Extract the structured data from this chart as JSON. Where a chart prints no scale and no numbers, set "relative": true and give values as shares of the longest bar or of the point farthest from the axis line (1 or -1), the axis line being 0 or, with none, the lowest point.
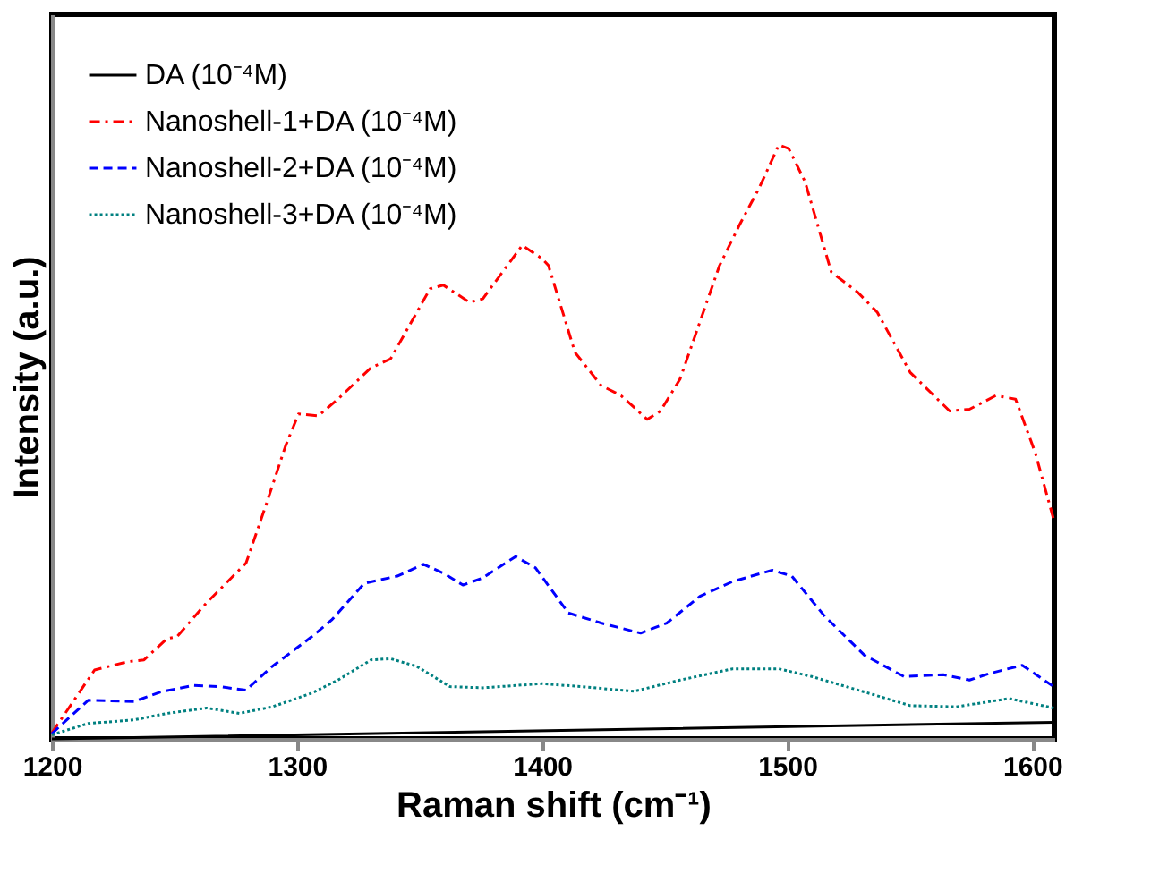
{
  "chart_data": {
    "type": "line",
    "relative": true,
    "xlabel": "Raman shift (cm⁻¹)",
    "ylabel": "Intensity (a.u.)",
    "xlim": [
      1200,
      1609
    ],
    "xticks": [
      1200,
      1300,
      1400,
      1500,
      1600
    ],
    "grid": false,
    "legend": "top left",
    "tick_labels": "x",
    "series": [
      {
        "name": "DA (10⁻⁴M)",
        "color": "#000000",
        "line_style": "solid",
        "x": [
          1200,
          1402.6,
          1608.7
        ],
        "values": [
          0,
          0.014,
          0.028
        ]
      },
      {
        "name": "Nanoshell-1+DA (10⁻⁴M)",
        "color": "#ff0000",
        "line_style": "dashdot",
        "x": [
          1200,
          1217.4,
          1230.9,
          1237.6,
          1247.0,
          1251.0,
          1263.1,
          1279.2,
          1287.2,
          1295.3,
          1300.6,
          1308.7,
          1316.7,
          1330.2,
          1338.2,
          1354.3,
          1359.7,
          1370.4,
          1375.8,
          1391.9,
          1399.9,
          1402.6,
          1413.4,
          1424.1,
          1432.2,
          1442.9,
          1448.3,
          1456.3,
          1472.4,
          1480.5,
          1488.5,
          1496.6,
          1500.6,
          1507.3,
          1518.0,
          1528.8,
          1536.8,
          1550.2,
          1566.3,
          1574.4,
          1585.1,
          1593.2,
          1601.2,
          1608.7
        ],
        "values": [
          0.01,
          0.116,
          0.13,
          0.133,
          0.169,
          0.172,
          0.229,
          0.296,
          0.392,
          0.493,
          0.547,
          0.544,
          0.572,
          0.625,
          0.64,
          0.758,
          0.764,
          0.735,
          0.741,
          0.831,
          0.809,
          0.797,
          0.651,
          0.595,
          0.578,
          0.538,
          0.552,
          0.606,
          0.797,
          0.865,
          0.927,
          1.0,
          0.994,
          0.938,
          0.786,
          0.752,
          0.718,
          0.617,
          0.552,
          0.555,
          0.578,
          0.572,
          0.482,
          0.37
        ]
      },
      {
        "name": "Nanoshell-2+DA (10⁻⁴M)",
        "color": "#0000ff",
        "line_style": "dashed",
        "x": [
          1200,
          1214.8,
          1233.5,
          1244.3,
          1257.7,
          1268.4,
          1279.2,
          1289.9,
          1306.0,
          1314.1,
          1327.5,
          1340.9,
          1351.6,
          1359.7,
          1367.7,
          1375.8,
          1389.2,
          1397.3,
          1410.7,
          1424.1,
          1440.2,
          1450.9,
          1464.4,
          1477.8,
          1493.9,
          1501.9,
          1515.4,
          1531.5,
          1547.6,
          1563.7,
          1574.4,
          1582.5,
          1595.9,
          1608.7
        ],
        "values": [
          0.009,
          0.065,
          0.063,
          0.079,
          0.09,
          0.088,
          0.082,
          0.122,
          0.172,
          0.2,
          0.262,
          0.274,
          0.294,
          0.279,
          0.259,
          0.271,
          0.307,
          0.288,
          0.212,
          0.195,
          0.178,
          0.195,
          0.24,
          0.265,
          0.284,
          0.274,
          0.206,
          0.141,
          0.105,
          0.108,
          0.099,
          0.11,
          0.124,
          0.088
        ]
      },
      {
        "name": "Nanoshell-3+DA (10⁻⁴M)",
        "color": "#008080",
        "line_style": "dotted",
        "x": [
          1200,
          1214.8,
          1233.5,
          1247.0,
          1263.1,
          1276.5,
          1289.9,
          1306.0,
          1316.7,
          1330.2,
          1338.2,
          1348.9,
          1362.4,
          1375.8,
          1399.9,
          1416.0,
          1437.5,
          1456.3,
          1477.8,
          1496.6,
          1510.0,
          1531.5,
          1550.2,
          1569.0,
          1590.5,
          1608.7
        ],
        "values": [
          0.007,
          0.026,
          0.032,
          0.043,
          0.052,
          0.043,
          0.054,
          0.077,
          0.099,
          0.133,
          0.135,
          0.122,
          0.088,
          0.086,
          0.093,
          0.088,
          0.08,
          0.099,
          0.118,
          0.118,
          0.105,
          0.079,
          0.056,
          0.054,
          0.068,
          0.052
        ]
      }
    ]
  }
}
